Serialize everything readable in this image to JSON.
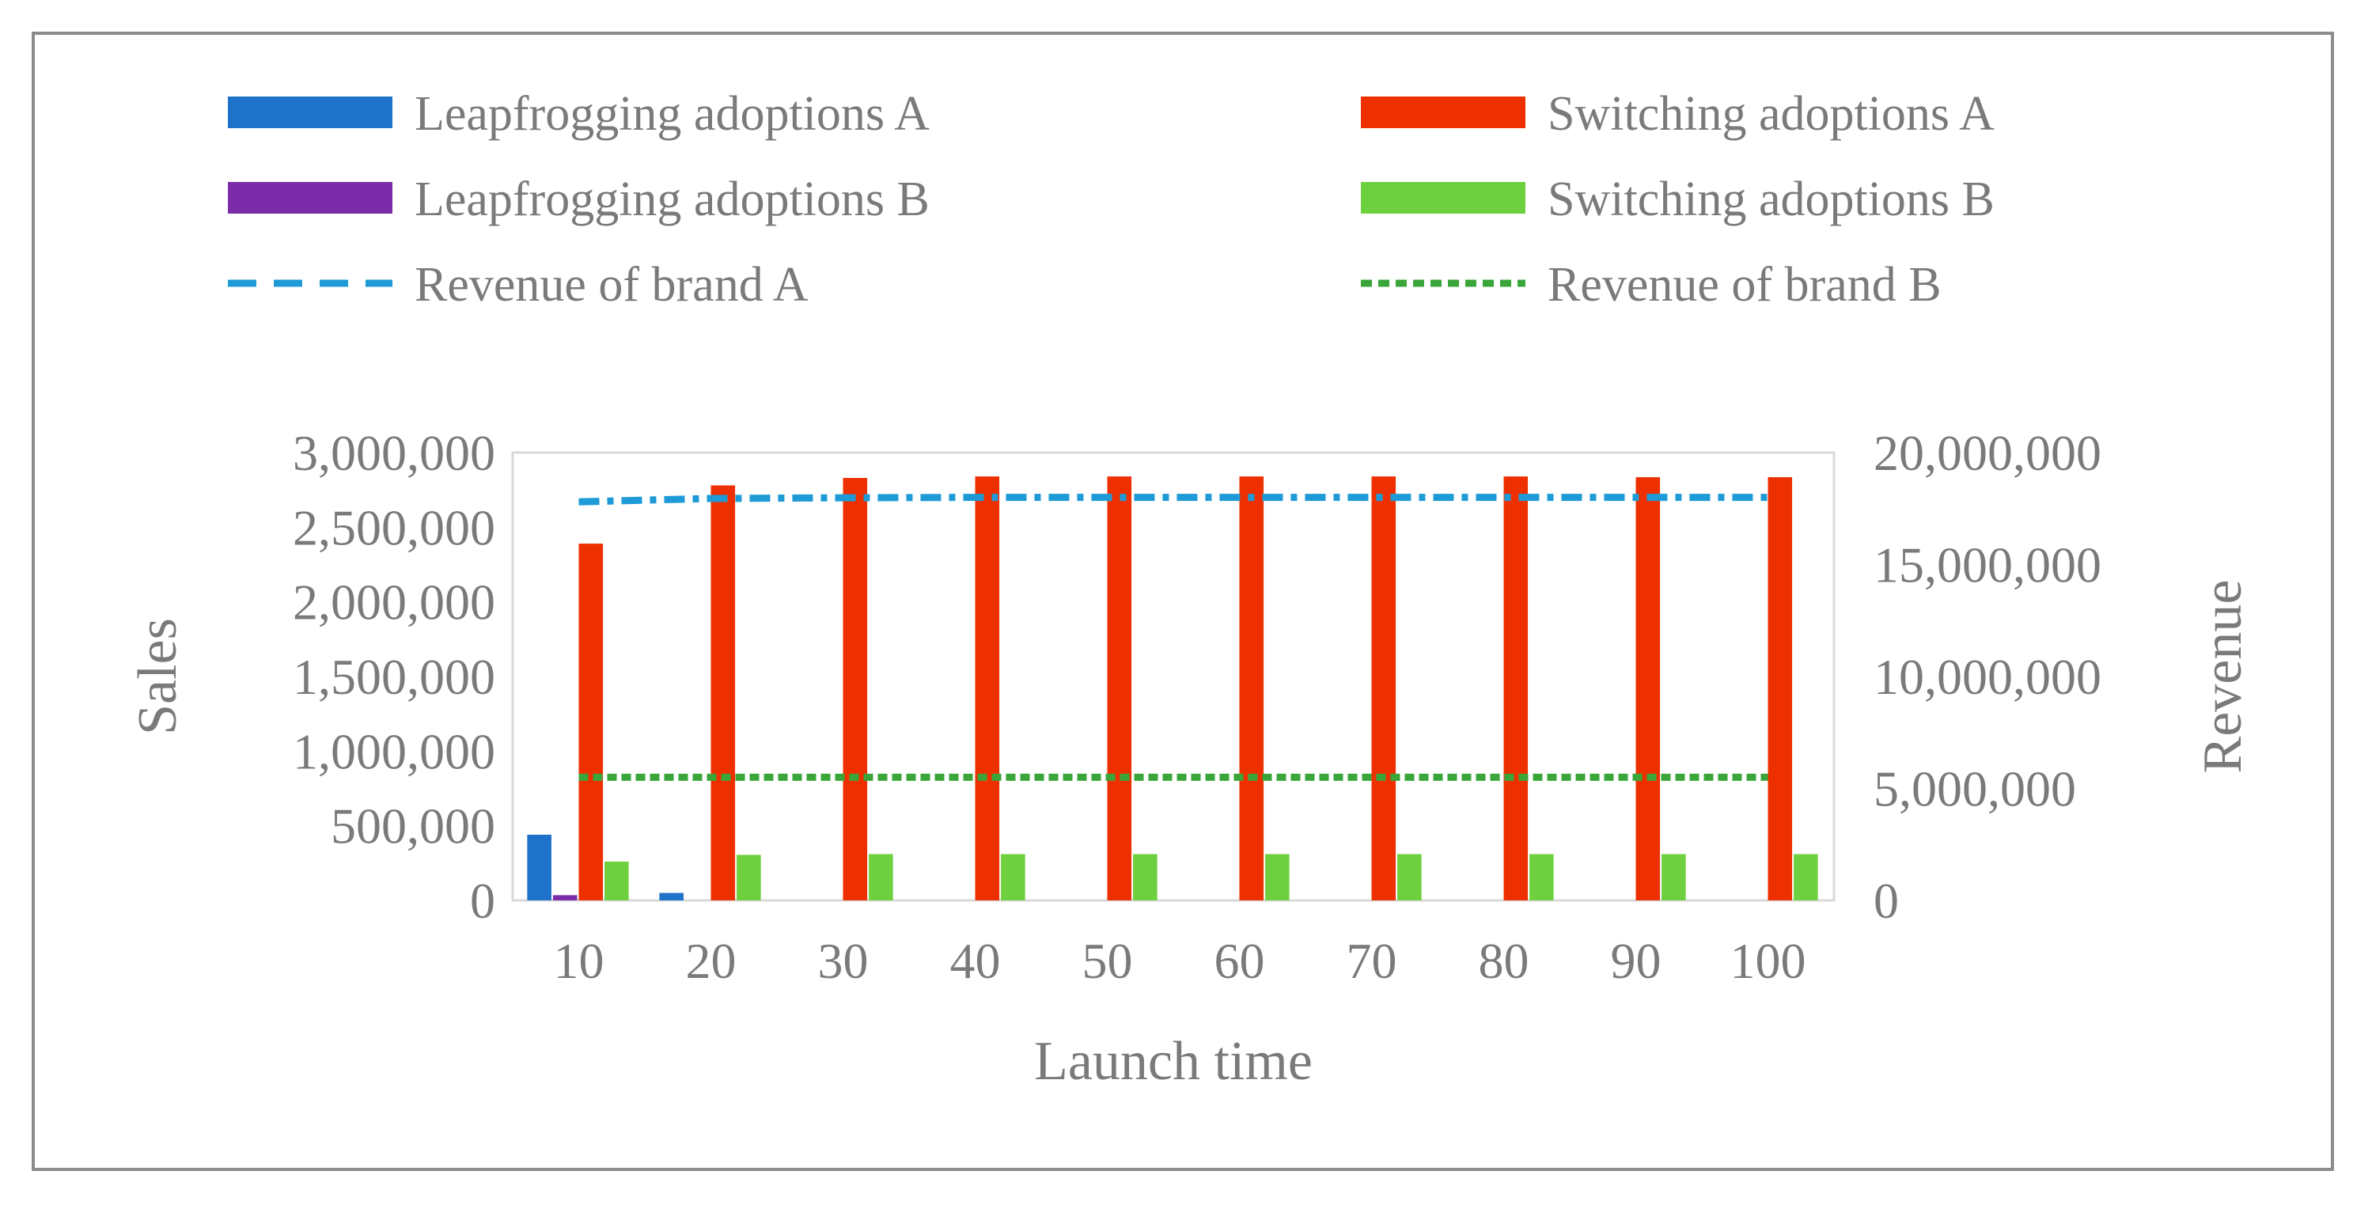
{
  "chart_data": {
    "type": "bar",
    "title": "",
    "xlabel": "Launch time",
    "ylabel": "Sales",
    "y2label": "Revenue",
    "categories": [
      "10",
      "20",
      "30",
      "40",
      "50",
      "60",
      "70",
      "80",
      "90",
      "100"
    ],
    "ylim": [
      0,
      3000000
    ],
    "y2lim": [
      0,
      20000000
    ],
    "yticks": [
      "0",
      "500,000",
      "1,000,000",
      "1,500,000",
      "2,000,000",
      "2,500,000",
      "3,000,000"
    ],
    "y2ticks": [
      "0",
      "5,000,000",
      "10,000,000",
      "15,000,000",
      "20,000,000"
    ],
    "yticks_values": [
      0,
      500000,
      1000000,
      1500000,
      2000000,
      2500000,
      3000000
    ],
    "y2ticks_values": [
      0,
      5000000,
      10000000,
      15000000,
      20000000
    ],
    "grid": false,
    "legend_position": "top",
    "series": [
      {
        "name": "Leapfrogging adoptions A",
        "kind": "bar",
        "axis": "left",
        "color": "#1f72c9",
        "values": [
          440000,
          50000,
          0,
          0,
          0,
          0,
          0,
          0,
          0,
          0
        ]
      },
      {
        "name": "Leapfrogging adoptions B",
        "kind": "bar",
        "axis": "left",
        "color": "#7b2ca8",
        "values": [
          35000,
          0,
          0,
          0,
          0,
          0,
          0,
          0,
          0,
          0
        ]
      },
      {
        "name": "Switching adoptions A",
        "kind": "bar",
        "axis": "left",
        "color": "#ee3000",
        "values": [
          2390000,
          2780000,
          2830000,
          2840000,
          2840000,
          2840000,
          2840000,
          2840000,
          2835000,
          2835000
        ]
      },
      {
        "name": "Switching adoptions B",
        "kind": "bar",
        "axis": "left",
        "color": "#6fd03f",
        "values": [
          260000,
          305000,
          310000,
          310000,
          310000,
          310000,
          310000,
          310000,
          310000,
          310000
        ]
      },
      {
        "name": "Revenue of brand A",
        "kind": "line",
        "axis": "right",
        "color": "#1e9bd7",
        "dash": "long",
        "values": [
          17800000,
          17950000,
          17980000,
          18000000,
          18000000,
          18000000,
          18000000,
          18000000,
          18000000,
          18000000
        ]
      },
      {
        "name": "Revenue of brand B",
        "kind": "line",
        "axis": "right",
        "color": "#3aa63a",
        "dash": "short",
        "values": [
          5500000,
          5500000,
          5500000,
          5500000,
          5500000,
          5500000,
          5500000,
          5500000,
          5500000,
          5500000
        ]
      }
    ],
    "legend_order": [
      "Leapfrogging adoptions A",
      "Switching adoptions A",
      "Leapfrogging adoptions B",
      "Switching adoptions B",
      "Revenue of brand A",
      "Revenue of brand B"
    ]
  }
}
